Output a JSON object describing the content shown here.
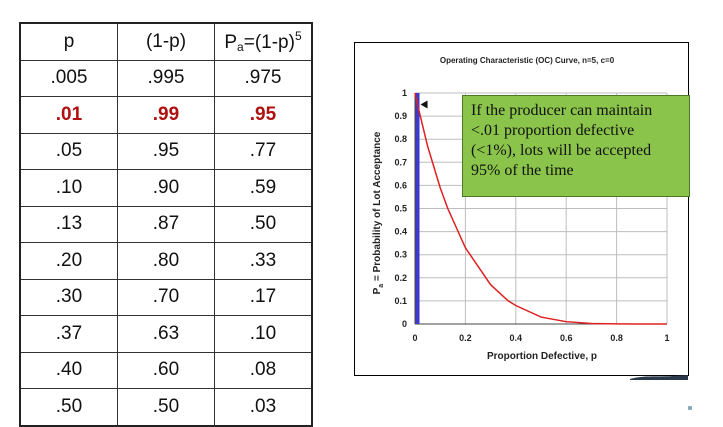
{
  "table": {
    "headers": {
      "p": "p",
      "one_minus_p": "(1-p)",
      "pa_base": "P",
      "pa_sub": "a",
      "pa_formula": "=(1-p)",
      "pa_sup": "5"
    },
    "rows": [
      [
        ".005",
        ".995",
        ".975"
      ],
      [
        ".01",
        ".99",
        ".95"
      ],
      [
        ".05",
        ".95",
        ".77"
      ],
      [
        ".10",
        ".90",
        ".59"
      ],
      [
        ".13",
        ".87",
        ".50"
      ],
      [
        ".20",
        ".80",
        ".33"
      ],
      [
        ".30",
        ".70",
        ".17"
      ],
      [
        ".37",
        ".63",
        ".10"
      ],
      [
        ".40",
        ".60",
        ".08"
      ],
      [
        ".50",
        ".50",
        ".03"
      ]
    ],
    "highlight_row": 1,
    "highlight_color": "#b01010"
  },
  "callout": {
    "text": "If the producer can maintain <.01 proportion defective (<1%), lots will be accepted 95% of the time",
    "background": "#8ac44a"
  },
  "chart_data": {
    "type": "line",
    "title": "Operating Characteristic (OC) Curve, n=5, c=0",
    "xlabel": "Proportion Defective, p",
    "ylabel_main": "P",
    "ylabel_sub": "a",
    "ylabel_rest": " = Probability of Lot Acceptance",
    "xlim": [
      0,
      1
    ],
    "ylim": [
      0,
      1
    ],
    "x_ticks": [
      "0",
      "0.2",
      "0.4",
      "0.6",
      "0.8",
      "1"
    ],
    "y_ticks": [
      "0",
      "0.1",
      "0.2",
      "0.3",
      "0.4",
      "0.5",
      "0.6",
      "0.7",
      "0.8",
      "0.9",
      "1"
    ],
    "grid": true,
    "series": [
      {
        "color": "#e02020",
        "x": [
          0,
          0.005,
          0.01,
          0.05,
          0.1,
          0.13,
          0.2,
          0.3,
          0.37,
          0.4,
          0.5,
          0.6,
          0.7,
          0.8,
          0.9,
          1.0
        ],
        "y": [
          1.0,
          0.975,
          0.95,
          0.77,
          0.59,
          0.5,
          0.33,
          0.17,
          0.1,
          0.08,
          0.03,
          0.01,
          0.002,
          0.0003,
          1e-05,
          0
        ]
      }
    ],
    "marker_line": {
      "x": 0.01,
      "color": "#3a3acc"
    },
    "marker_point": {
      "x": 0.01,
      "y": 0.95
    }
  }
}
